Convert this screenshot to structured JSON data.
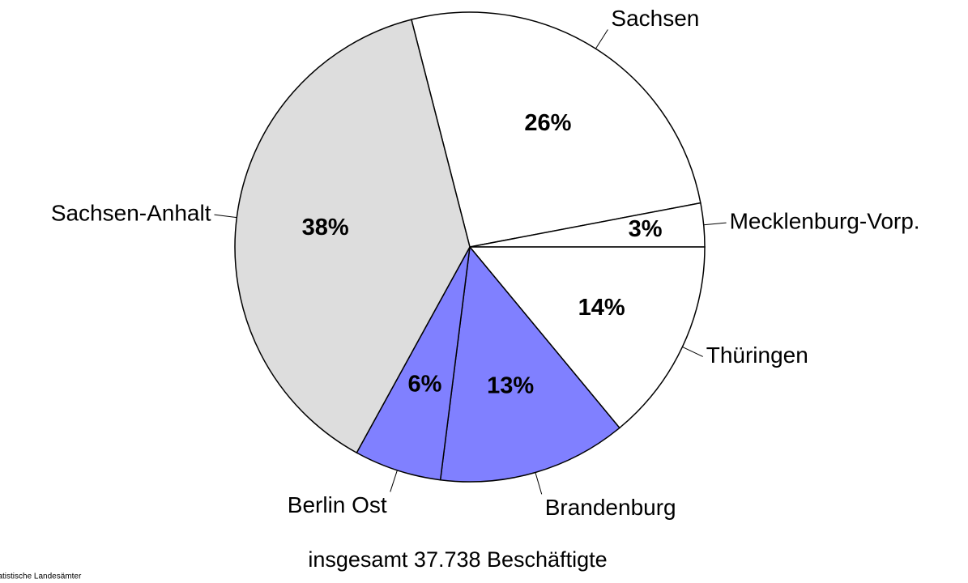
{
  "chart_data": {
    "type": "pie",
    "categories": [
      "Sachsen",
      "Mecklenburg-Vorp.",
      "Thüringen",
      "Brandenburg",
      "Berlin Ost",
      "Sachsen-Anhalt"
    ],
    "values": [
      26,
      3,
      14,
      13,
      6,
      38
    ],
    "value_labels": [
      "26%",
      "3%",
      "14%",
      "13%",
      "6%",
      "38%"
    ],
    "colors": [
      "#ffffff",
      "#ffffff",
      "#ffffff",
      "#8080ff",
      "#8080ff",
      "#dddddd"
    ],
    "annotation": "insgesamt 37.738 Beschäftigte",
    "source": "Statistische Landesämter"
  }
}
